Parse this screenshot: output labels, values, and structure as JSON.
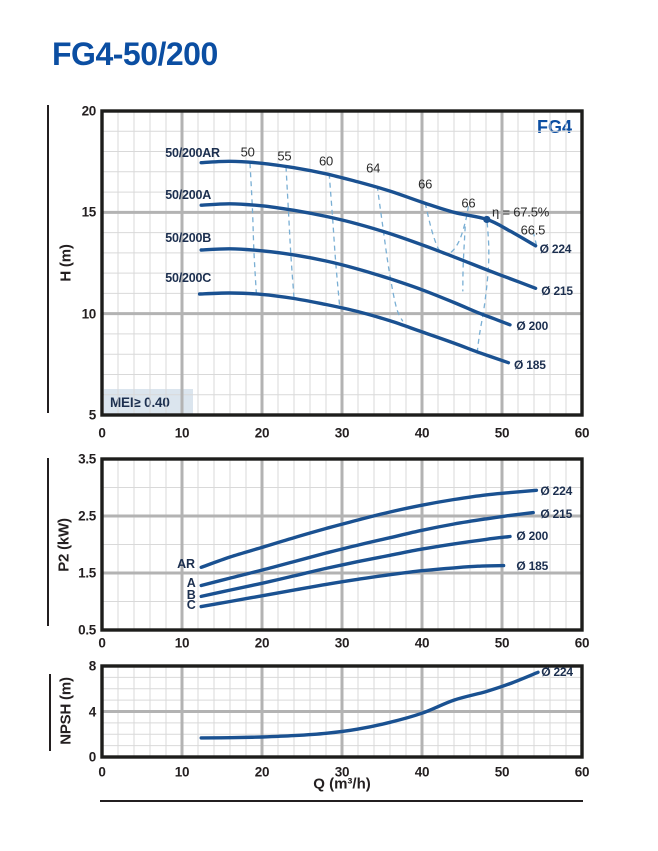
{
  "page": {
    "title": "FG4-50/200",
    "brand": "FG4",
    "mei": "MEI≥ 0.40",
    "xlabel": "Q (m³/h)"
  },
  "colors": {
    "title_blue": "#0b4ea2",
    "curve_blue": "#1a5191",
    "label_navy": "#1c2f4f",
    "efficiency_text": "#2b2b2b",
    "dashed_light_blue": "#7aafd4",
    "grid_minor": "#d9d9d9",
    "grid_major": "#b3b3b3",
    "plot_border": "#1d1d1b",
    "mei_background": "#dbe5ee"
  },
  "chart_data": [
    {
      "type": "line",
      "title": "Head vs flow curves",
      "ylabel": "H (m)",
      "xlim": [
        0,
        60
      ],
      "ylim": [
        5,
        20
      ],
      "grid": {
        "x_minor": 2,
        "x_major": 10,
        "y_minor": 1,
        "y_major": 5
      },
      "x_ticks": [
        {
          "v": 0,
          "label": "0"
        },
        {
          "v": 10,
          "label": "10"
        },
        {
          "v": 20,
          "label": "20"
        },
        {
          "v": 30,
          "label": "30"
        },
        {
          "v": 40,
          "label": "40"
        },
        {
          "v": 50,
          "label": "50"
        },
        {
          "v": 60,
          "label": "60"
        }
      ],
      "y_ticks": [
        {
          "v": 20,
          "label": "20"
        },
        {
          "v": 15,
          "label": "15"
        },
        {
          "v": 10,
          "label": "10"
        },
        {
          "v": 5,
          "label": "5"
        }
      ],
      "series": [
        {
          "name": "50/200AR",
          "diameter": "Ø 224",
          "points": [
            [
              12.4,
              17.45
            ],
            [
              16,
              17.52
            ],
            [
              20,
              17.42
            ],
            [
              24,
              17.2
            ],
            [
              28,
              16.9
            ],
            [
              32,
              16.5
            ],
            [
              36,
              16.05
            ],
            [
              40,
              15.5
            ],
            [
              44,
              15.0
            ],
            [
              48.1,
              14.65
            ],
            [
              51,
              14.08
            ],
            [
              54.2,
              13.35
            ]
          ]
        },
        {
          "name": "50/200A",
          "diameter": "Ø 215",
          "points": [
            [
              12.4,
              15.35
            ],
            [
              16,
              15.42
            ],
            [
              20,
              15.32
            ],
            [
              24,
              15.1
            ],
            [
              28,
              14.8
            ],
            [
              32,
              14.42
            ],
            [
              36,
              13.95
            ],
            [
              40,
              13.4
            ],
            [
              44,
              12.8
            ],
            [
              48,
              12.18
            ],
            [
              51,
              11.73
            ],
            [
              54.2,
              11.25
            ]
          ]
        },
        {
          "name": "50/200B",
          "diameter": "Ø 200",
          "points": [
            [
              12.4,
              13.14
            ],
            [
              16,
              13.2
            ],
            [
              20,
              13.1
            ],
            [
              24,
              12.9
            ],
            [
              28,
              12.6
            ],
            [
              32,
              12.2
            ],
            [
              36,
              11.72
            ],
            [
              40,
              11.18
            ],
            [
              44,
              10.55
            ],
            [
              47,
              10.05
            ],
            [
              49,
              9.75
            ],
            [
              51,
              9.45
            ]
          ]
        },
        {
          "name": "50/200C",
          "diameter": "Ø 185",
          "points": [
            [
              12.2,
              10.97
            ],
            [
              16,
              11.02
            ],
            [
              20,
              10.95
            ],
            [
              24,
              10.75
            ],
            [
              28,
              10.45
            ],
            [
              32,
              10.1
            ],
            [
              36,
              9.65
            ],
            [
              40,
              9.1
            ],
            [
              44,
              8.55
            ],
            [
              47,
              8.1
            ],
            [
              50.8,
              7.58
            ]
          ]
        }
      ],
      "efficiency_lines": [
        {
          "label": "50",
          "points": [
            [
              18.5,
              17.42
            ],
            [
              18.8,
              15.2
            ],
            [
              19.0,
              13.0
            ],
            [
              19.3,
              10.95
            ]
          ]
        },
        {
          "label": "55",
          "points": [
            [
              23.0,
              17.25
            ],
            [
              23.3,
              15.1
            ],
            [
              23.6,
              12.95
            ],
            [
              24.0,
              10.78
            ]
          ]
        },
        {
          "label": "60",
          "points": [
            [
              28.4,
              16.9
            ],
            [
              28.8,
              14.85
            ],
            [
              29.2,
              12.6
            ],
            [
              29.7,
              10.4
            ]
          ]
        },
        {
          "label": "64",
          "points": [
            [
              34.4,
              16.3
            ],
            [
              35.1,
              14.3
            ],
            [
              35.9,
              12.1
            ],
            [
              36.8,
              10.3
            ],
            [
              37.6,
              9.62
            ]
          ]
        },
        {
          "label": "66",
          "points": [
            [
              40.4,
              15.45
            ],
            [
              41.3,
              14.0
            ],
            [
              42.3,
              13.05
            ],
            [
              43.5,
              13.0
            ],
            [
              44.6,
              13.55
            ],
            [
              45.4,
              14.5
            ],
            [
              45.8,
              15.3
            ]
          ]
        },
        {
          "label": "66",
          "points": [
            [
              45.4,
              14.3
            ],
            [
              45.15,
              12.4
            ],
            [
              45.1,
              11.1
            ]
          ]
        },
        {
          "label": "66",
          "points": [
            [
              48.15,
              14.5
            ],
            [
              48.35,
              13.2
            ],
            [
              48.25,
              12.0
            ],
            [
              47.8,
              10.4
            ],
            [
              47.2,
              9.0
            ],
            [
              46.9,
              8.1
            ]
          ]
        },
        {
          "label": "66.5",
          "points": [
            [
              53.9,
              14.05
            ],
            [
              54.3,
              13.4
            ]
          ]
        }
      ],
      "bep": {
        "q": 48.1,
        "h": 14.65,
        "efficiency_label": "η = 67.5%"
      },
      "annotations": [
        {
          "text": "50/200AR",
          "q": 7.9,
          "v": 17.92,
          "align": "left",
          "cls": "name"
        },
        {
          "text": "50/200A",
          "q": 7.9,
          "v": 15.85,
          "align": "left",
          "cls": "name"
        },
        {
          "text": "50/200B",
          "q": 7.9,
          "v": 13.73,
          "align": "left",
          "cls": "name"
        },
        {
          "text": "50/200C",
          "q": 7.9,
          "v": 11.76,
          "align": "left",
          "cls": "name"
        },
        {
          "text": "50",
          "q": 18.2,
          "v": 18.0,
          "align": "center",
          "cls": "eff"
        },
        {
          "text": "55",
          "q": 22.8,
          "v": 17.78,
          "align": "center",
          "cls": "eff"
        },
        {
          "text": "60",
          "q": 28.0,
          "v": 17.53,
          "align": "center",
          "cls": "eff"
        },
        {
          "text": "64",
          "q": 33.9,
          "v": 17.19,
          "align": "center",
          "cls": "eff"
        },
        {
          "text": "66",
          "q": 40.4,
          "v": 16.4,
          "align": "center",
          "cls": "eff"
        },
        {
          "text": "66",
          "q": 45.8,
          "v": 15.46,
          "align": "center",
          "cls": "eff"
        },
        {
          "text": "η = 67.5%",
          "q": 48.75,
          "v": 15.02,
          "align": "left",
          "cls": "eff"
        },
        {
          "text": "66.5",
          "q": 55.4,
          "v": 14.13,
          "align": "right",
          "cls": "eff"
        },
        {
          "text": "Ø 224",
          "q": 54.7,
          "v": 13.17,
          "align": "left",
          "cls": "dia"
        },
        {
          "text": "Ø 215",
          "q": 54.9,
          "v": 11.14,
          "align": "left",
          "cls": "dia"
        },
        {
          "text": "Ø 200",
          "q": 51.8,
          "v": 9.37,
          "align": "left",
          "cls": "dia"
        },
        {
          "text": "Ø 185",
          "q": 51.5,
          "v": 7.49,
          "align": "left",
          "cls": "dia"
        }
      ]
    },
    {
      "type": "line",
      "title": "Shaft power vs flow curves",
      "ylabel": "P2 (kW)",
      "xlim": [
        0,
        60
      ],
      "ylim": [
        0.5,
        3.5
      ],
      "grid": {
        "x_minor": 2,
        "x_major": 10,
        "y_minor": 0.5,
        "y_major": 1
      },
      "x_ticks": [
        {
          "v": 0,
          "label": "0"
        },
        {
          "v": 10,
          "label": "10"
        },
        {
          "v": 20,
          "label": "20"
        },
        {
          "v": 30,
          "label": "30"
        },
        {
          "v": 40,
          "label": "40"
        },
        {
          "v": 50,
          "label": "50"
        },
        {
          "v": 60,
          "label": "60"
        }
      ],
      "y_ticks": [
        {
          "v": 3.5,
          "label": "3.5"
        },
        {
          "v": 2.5,
          "label": "2.5"
        },
        {
          "v": 1.5,
          "label": "1.5"
        },
        {
          "v": 0.5,
          "label": "0.5"
        }
      ],
      "series": [
        {
          "name": "AR",
          "diameter": "Ø 224",
          "points": [
            [
              12.4,
              1.6
            ],
            [
              16,
              1.78
            ],
            [
              20,
              1.95
            ],
            [
              24,
              2.12
            ],
            [
              28,
              2.28
            ],
            [
              32,
              2.43
            ],
            [
              36,
              2.57
            ],
            [
              40,
              2.69
            ],
            [
              44,
              2.79
            ],
            [
              48,
              2.87
            ],
            [
              51,
              2.91
            ],
            [
              54.3,
              2.95
            ]
          ]
        },
        {
          "name": "A",
          "diameter": "Ø 215",
          "points": [
            [
              12.4,
              1.28
            ],
            [
              16,
              1.41
            ],
            [
              20,
              1.55
            ],
            [
              24,
              1.7
            ],
            [
              28,
              1.85
            ],
            [
              32,
              1.99
            ],
            [
              36,
              2.12
            ],
            [
              40,
              2.25
            ],
            [
              44,
              2.36
            ],
            [
              48,
              2.45
            ],
            [
              51,
              2.51
            ],
            [
              53.9,
              2.56
            ]
          ]
        },
        {
          "name": "B",
          "diameter": "Ø 200",
          "points": [
            [
              12.4,
              1.09
            ],
            [
              16,
              1.2
            ],
            [
              20,
              1.32
            ],
            [
              24,
              1.45
            ],
            [
              28,
              1.58
            ],
            [
              32,
              1.7
            ],
            [
              36,
              1.81
            ],
            [
              40,
              1.92
            ],
            [
              44,
              2.01
            ],
            [
              48,
              2.09
            ],
            [
              51,
              2.14
            ]
          ]
        },
        {
          "name": "C",
          "diameter": "Ø 185",
          "points": [
            [
              12.4,
              0.91
            ],
            [
              16,
              1.0
            ],
            [
              20,
              1.1
            ],
            [
              24,
              1.2
            ],
            [
              28,
              1.3
            ],
            [
              32,
              1.39
            ],
            [
              36,
              1.47
            ],
            [
              40,
              1.54
            ],
            [
              44,
              1.59
            ],
            [
              47,
              1.62
            ],
            [
              50.2,
              1.63
            ]
          ]
        }
      ],
      "efficiency_lines": [],
      "annotations": [
        {
          "text": "AR",
          "q": 11.6,
          "v": 1.66,
          "align": "right",
          "cls": "name"
        },
        {
          "text": "A",
          "q": 11.7,
          "v": 1.33,
          "align": "right",
          "cls": "name"
        },
        {
          "text": "B",
          "q": 11.7,
          "v": 1.12,
          "align": "right",
          "cls": "name"
        },
        {
          "text": "C",
          "q": 11.7,
          "v": 0.93,
          "align": "right",
          "cls": "name"
        },
        {
          "text": "Ø 224",
          "q": 54.8,
          "v": 2.94,
          "align": "left",
          "cls": "dia"
        },
        {
          "text": "Ø 215",
          "q": 54.8,
          "v": 2.54,
          "align": "left",
          "cls": "dia"
        },
        {
          "text": "Ø 200",
          "q": 51.8,
          "v": 2.15,
          "align": "left",
          "cls": "dia"
        },
        {
          "text": "Ø 185",
          "q": 51.8,
          "v": 1.62,
          "align": "left",
          "cls": "dia"
        }
      ]
    },
    {
      "type": "line",
      "title": "NPSH vs flow curve",
      "ylabel": "NPSH (m)",
      "xlim": [
        0,
        60
      ],
      "ylim": [
        0,
        8
      ],
      "grid": {
        "x_minor": 2,
        "x_major": 10,
        "y_minor": 1,
        "y_major": 4
      },
      "x_ticks": [
        {
          "v": 0,
          "label": "0"
        },
        {
          "v": 10,
          "label": "10"
        },
        {
          "v": 20,
          "label": "20"
        },
        {
          "v": 30,
          "label": "30"
        },
        {
          "v": 40,
          "label": "40"
        },
        {
          "v": 50,
          "label": "50"
        },
        {
          "v": 60,
          "label": "60"
        }
      ],
      "y_ticks": [
        {
          "v": 8,
          "label": "8"
        },
        {
          "v": 4,
          "label": "4"
        },
        {
          "v": 0,
          "label": "0"
        }
      ],
      "series": [
        {
          "name": "Ø 224",
          "diameter": "Ø 224",
          "points": [
            [
              12.4,
              1.68
            ],
            [
              16,
              1.7
            ],
            [
              20,
              1.76
            ],
            [
              24,
              1.88
            ],
            [
              28,
              2.08
            ],
            [
              32,
              2.45
            ],
            [
              36,
              3.05
            ],
            [
              40,
              3.85
            ],
            [
              44,
              5.0
            ],
            [
              48,
              5.75
            ],
            [
              51,
              6.45
            ],
            [
              54.5,
              7.45
            ]
          ]
        }
      ],
      "efficiency_lines": [],
      "annotations": [
        {
          "text": "Ø 224",
          "q": 54.9,
          "v": 7.43,
          "align": "left",
          "cls": "dia"
        }
      ]
    }
  ]
}
